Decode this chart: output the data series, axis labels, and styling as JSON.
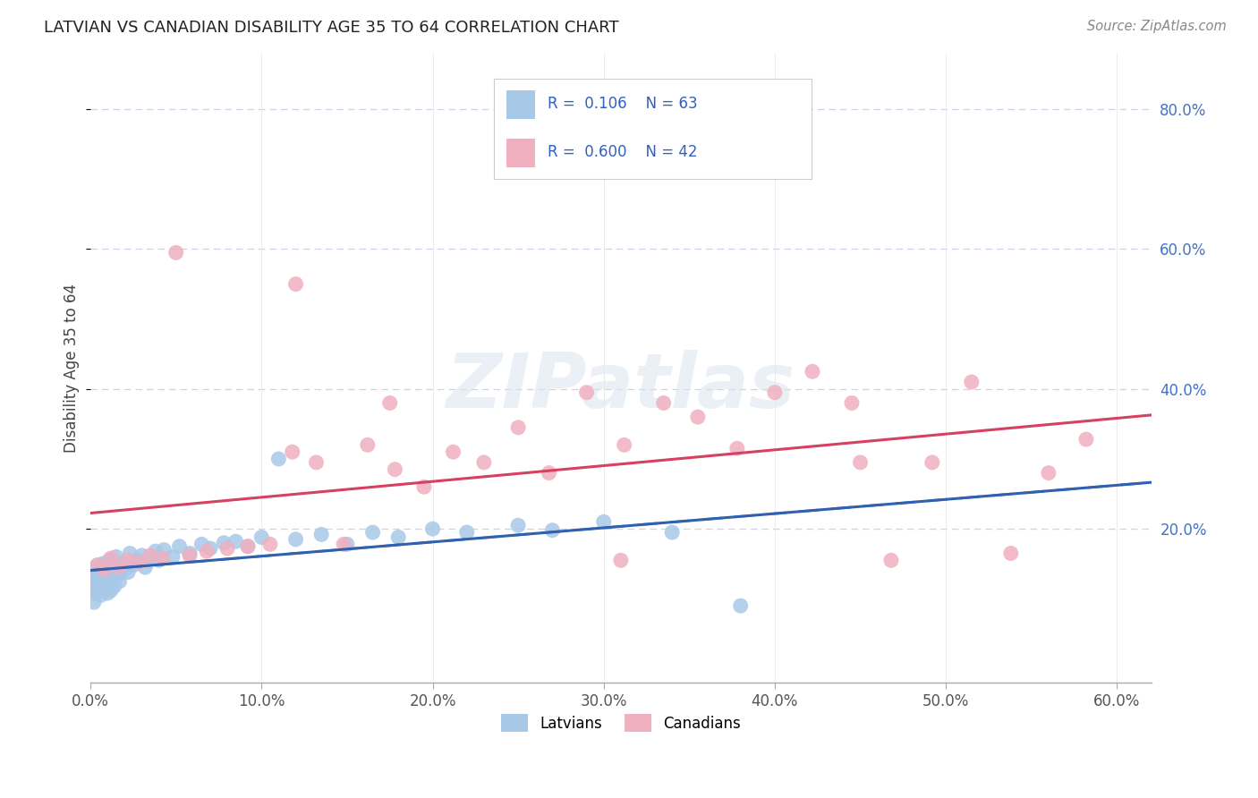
{
  "title": "LATVIAN VS CANADIAN DISABILITY AGE 35 TO 64 CORRELATION CHART",
  "source_text": "Source: ZipAtlas.com",
  "ylabel": "Disability Age 35 to 64",
  "xlim": [
    0.0,
    0.62
  ],
  "ylim": [
    -0.02,
    0.88
  ],
  "xtick_vals": [
    0.0,
    0.1,
    0.2,
    0.3,
    0.4,
    0.5,
    0.6
  ],
  "ytick_vals": [
    0.2,
    0.4,
    0.6,
    0.8
  ],
  "latvian_R": 0.106,
  "latvian_N": 63,
  "canadian_R": 0.6,
  "canadian_N": 42,
  "latvian_color": "#a8c8e8",
  "latvian_line_color": "#3060b0",
  "canadian_color": "#f0b0c0",
  "canadian_line_color": "#d84060",
  "background_color": "#ffffff",
  "grid_color": "#c8d4e8",
  "latvians_x": [
    0.001,
    0.002,
    0.002,
    0.003,
    0.003,
    0.003,
    0.004,
    0.004,
    0.004,
    0.005,
    0.005,
    0.005,
    0.006,
    0.006,
    0.007,
    0.007,
    0.008,
    0.008,
    0.009,
    0.01,
    0.01,
    0.011,
    0.012,
    0.012,
    0.013,
    0.014,
    0.015,
    0.016,
    0.017,
    0.018,
    0.02,
    0.022,
    0.023,
    0.025,
    0.027,
    0.03,
    0.032,
    0.035,
    0.038,
    0.04,
    0.043,
    0.048,
    0.052,
    0.058,
    0.065,
    0.07,
    0.078,
    0.085,
    0.092,
    0.1,
    0.11,
    0.12,
    0.135,
    0.15,
    0.165,
    0.18,
    0.2,
    0.22,
    0.25,
    0.27,
    0.3,
    0.34,
    0.38
  ],
  "latvians_y": [
    0.13,
    0.095,
    0.115,
    0.125,
    0.108,
    0.14,
    0.112,
    0.135,
    0.148,
    0.118,
    0.128,
    0.142,
    0.105,
    0.132,
    0.115,
    0.15,
    0.122,
    0.138,
    0.145,
    0.108,
    0.125,
    0.155,
    0.112,
    0.13,
    0.148,
    0.118,
    0.16,
    0.135,
    0.125,
    0.15,
    0.142,
    0.138,
    0.165,
    0.148,
    0.155,
    0.162,
    0.145,
    0.158,
    0.168,
    0.155,
    0.17,
    0.16,
    0.175,
    0.165,
    0.178,
    0.172,
    0.18,
    0.182,
    0.175,
    0.188,
    0.3,
    0.185,
    0.192,
    0.178,
    0.195,
    0.188,
    0.2,
    0.195,
    0.205,
    0.198,
    0.21,
    0.195,
    0.09
  ],
  "canadians_x": [
    0.004,
    0.008,
    0.012,
    0.016,
    0.022,
    0.028,
    0.035,
    0.042,
    0.05,
    0.058,
    0.068,
    0.08,
    0.092,
    0.105,
    0.118,
    0.132,
    0.148,
    0.162,
    0.178,
    0.195,
    0.212,
    0.23,
    0.25,
    0.268,
    0.29,
    0.312,
    0.335,
    0.355,
    0.378,
    0.4,
    0.422,
    0.445,
    0.468,
    0.492,
    0.515,
    0.538,
    0.56,
    0.582,
    0.12,
    0.31,
    0.45,
    0.175
  ],
  "canadians_y": [
    0.148,
    0.142,
    0.158,
    0.145,
    0.155,
    0.152,
    0.162,
    0.158,
    0.595,
    0.162,
    0.168,
    0.172,
    0.175,
    0.178,
    0.31,
    0.295,
    0.178,
    0.32,
    0.285,
    0.26,
    0.31,
    0.295,
    0.345,
    0.28,
    0.395,
    0.32,
    0.38,
    0.36,
    0.315,
    0.395,
    0.425,
    0.38,
    0.155,
    0.295,
    0.41,
    0.165,
    0.28,
    0.328,
    0.55,
    0.155,
    0.295,
    0.38
  ]
}
